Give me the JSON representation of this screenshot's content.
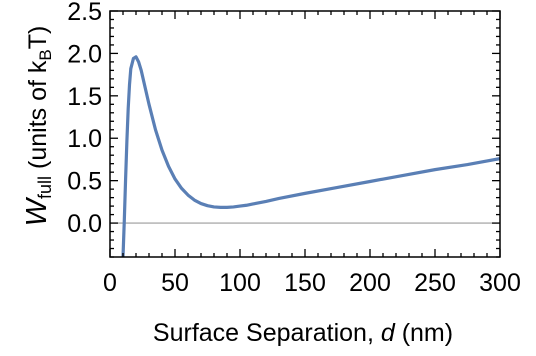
{
  "chart_data": {
    "type": "line",
    "xlabel_parts": {
      "text": "Surface Separation, ",
      "var": "d",
      "unit": " (nm)"
    },
    "ylabel_parts": {
      "sym": "W",
      "sub": "full",
      "pre": " (units of k",
      "unit_sub": "B",
      "post": "T)"
    },
    "xlim": [
      0,
      300
    ],
    "ylim": [
      -0.4,
      2.5
    ],
    "x_ticks": [
      0,
      50,
      100,
      150,
      200,
      250,
      300
    ],
    "x_tick_labels": [
      "0",
      "50",
      "100",
      "150",
      "200",
      "250",
      "300"
    ],
    "y_ticks": [
      0.0,
      0.5,
      1.0,
      1.5,
      2.0,
      2.5
    ],
    "y_tick_labels": [
      "0.0",
      "0.5",
      "1.0",
      "1.5",
      "2.0",
      "2.5"
    ],
    "reference_line_y": 0,
    "colors": {
      "line": "#5a7fb5",
      "zero_line": "#9b9b9b",
      "frame": "#000000"
    },
    "series": [
      {
        "x": [
          10,
          11,
          12,
          13,
          14,
          15,
          16,
          18,
          20,
          22,
          24,
          27,
          30,
          35,
          40,
          45,
          50,
          55,
          60,
          65,
          70,
          75,
          80,
          85,
          90,
          95,
          100,
          105,
          110,
          120,
          130,
          150,
          175,
          200,
          225,
          250,
          275,
          300
        ],
        "y": [
          -0.4,
          0.03,
          0.52,
          0.97,
          1.35,
          1.63,
          1.82,
          1.94,
          1.96,
          1.9,
          1.8,
          1.6,
          1.4,
          1.1,
          0.86,
          0.67,
          0.52,
          0.41,
          0.33,
          0.27,
          0.23,
          0.205,
          0.19,
          0.185,
          0.185,
          0.19,
          0.2,
          0.21,
          0.225,
          0.255,
          0.29,
          0.35,
          0.42,
          0.49,
          0.56,
          0.63,
          0.69,
          0.76
        ]
      }
    ]
  }
}
